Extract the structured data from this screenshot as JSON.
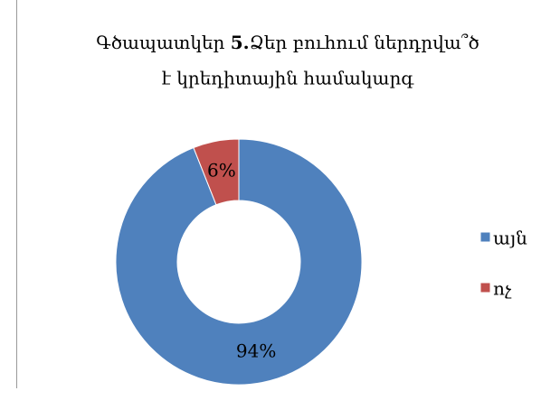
{
  "chart_data": {
    "type": "donut",
    "title": [
      "Գծապատկեր ",
      "5.",
      "Ձեր բուհում ներդրվա՞ծ",
      "է կրեդիտային համակարգ"
    ],
    "categories": [
      "այն",
      "ոչ"
    ],
    "values": [
      94,
      6
    ],
    "value_labels": [
      "94%",
      "6%"
    ],
    "colors": [
      "#4f81bd",
      "#c0504d"
    ],
    "legend": "right"
  }
}
